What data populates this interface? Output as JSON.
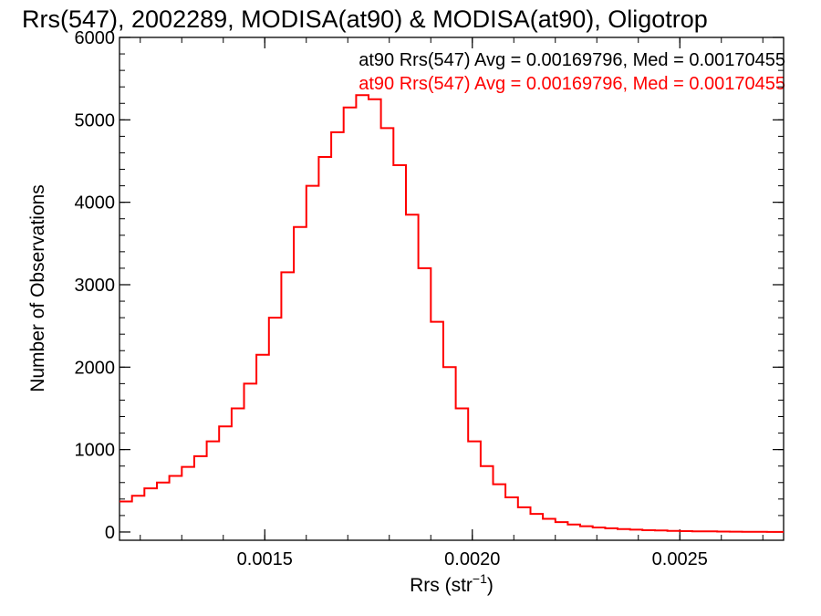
{
  "chart_data": {
    "type": "histogram",
    "title": "Rrs(547), 2002289, MODISA(at90) & MODISA(at90), Oligotrop",
    "xlabel": {
      "main": "Rrs (str",
      "superscript": "−1",
      "close": ")"
    },
    "ylabel": "Number of Observations",
    "xlim": [
      0.00115,
      0.00275
    ],
    "ylim": [
      -100,
      6000
    ],
    "xticks": [
      {
        "value": 0.0015,
        "label": "0.0015"
      },
      {
        "value": 0.002,
        "label": "0.0020"
      },
      {
        "value": 0.0025,
        "label": "0.0025"
      }
    ],
    "yticks": [
      {
        "value": 0,
        "label": "0"
      },
      {
        "value": 1000,
        "label": "1000"
      },
      {
        "value": 2000,
        "label": "2000"
      },
      {
        "value": 3000,
        "label": "3000"
      },
      {
        "value": 4000,
        "label": "4000"
      },
      {
        "value": 5000,
        "label": "5000"
      },
      {
        "value": 6000,
        "label": "6000"
      }
    ],
    "x_minor_step": 0.0001,
    "y_minor_step": 200,
    "legend": {
      "placement": "top-right",
      "entries": [
        {
          "text": "at90 Rrs(547) Avg = 0.00169796, Med = 0.00170455",
          "color": "#000000"
        },
        {
          "text": "at90 Rrs(547) Avg = 0.00169796, Med = 0.00170455",
          "color": "#ff0000"
        }
      ]
    },
    "series": [
      {
        "color": "#ff0000",
        "style": "step",
        "bins": [
          [
            0.00115,
            370
          ],
          [
            0.00118,
            440
          ],
          [
            0.00121,
            530
          ],
          [
            0.00124,
            600
          ],
          [
            0.00127,
            680
          ],
          [
            0.0013,
            790
          ],
          [
            0.00133,
            920
          ],
          [
            0.00136,
            1100
          ],
          [
            0.00139,
            1280
          ],
          [
            0.00142,
            1500
          ],
          [
            0.00145,
            1800
          ],
          [
            0.00148,
            2150
          ],
          [
            0.00151,
            2600
          ],
          [
            0.00154,
            3150
          ],
          [
            0.00157,
            3700
          ],
          [
            0.0016,
            4200
          ],
          [
            0.00163,
            4550
          ],
          [
            0.00166,
            4850
          ],
          [
            0.00169,
            5150
          ],
          [
            0.00172,
            5300
          ],
          [
            0.00175,
            5250
          ],
          [
            0.00178,
            4900
          ],
          [
            0.00181,
            4450
          ],
          [
            0.00184,
            3850
          ],
          [
            0.00187,
            3200
          ],
          [
            0.0019,
            2550
          ],
          [
            0.00193,
            2000
          ],
          [
            0.00196,
            1500
          ],
          [
            0.00199,
            1100
          ],
          [
            0.00202,
            800
          ],
          [
            0.00205,
            580
          ],
          [
            0.00208,
            420
          ],
          [
            0.00211,
            300
          ],
          [
            0.00214,
            220
          ],
          [
            0.00217,
            160
          ],
          [
            0.0022,
            120
          ],
          [
            0.00223,
            90
          ],
          [
            0.00226,
            70
          ],
          [
            0.00229,
            55
          ],
          [
            0.00232,
            45
          ],
          [
            0.00235,
            35
          ],
          [
            0.00238,
            28
          ],
          [
            0.00241,
            22
          ],
          [
            0.00244,
            18
          ],
          [
            0.00247,
            14
          ],
          [
            0.0025,
            11
          ],
          [
            0.00253,
            9
          ],
          [
            0.00256,
            7
          ],
          [
            0.00259,
            5
          ],
          [
            0.00262,
            4
          ],
          [
            0.00265,
            3
          ],
          [
            0.00268,
            2
          ],
          [
            0.00271,
            1
          ]
        ]
      }
    ]
  }
}
